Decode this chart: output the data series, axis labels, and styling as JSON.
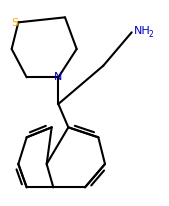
{
  "bg_color": "#ffffff",
  "line_color": "#000000",
  "label_color_N": "#0000ff",
  "label_color_S": "#ffaa00",
  "label_color_NH2": "#0000ff",
  "lw": 1.5,
  "figwidth": 1.69,
  "figheight": 2.07,
  "dpi": 100,
  "xlim": [
    0,
    169
  ],
  "ylim": [
    0,
    207
  ]
}
